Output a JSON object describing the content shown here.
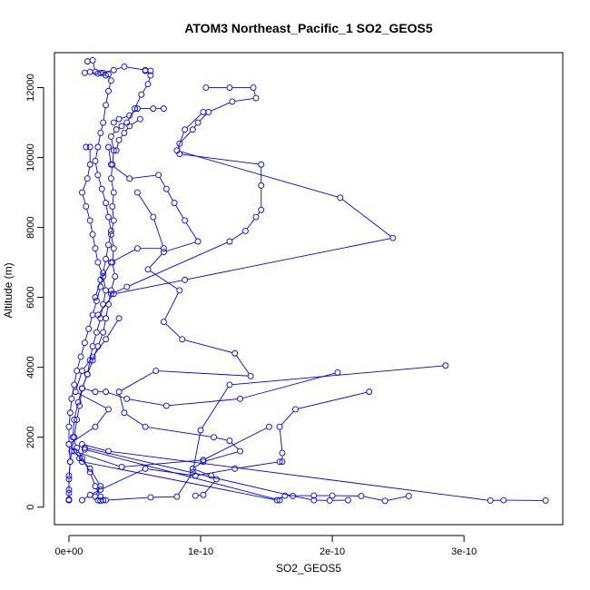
{
  "chart_data": {
    "type": "line",
    "title": "ATOM3 Northeast_Pacific_1 SO2_GEOS5",
    "xlabel": "SO2_GEOS5",
    "ylabel": "Altitude (m)",
    "xlim": [
      -1.1e-11,
      3.75e-10
    ],
    "ylim": [
      -500,
      13000
    ],
    "x_ticks": [
      0,
      1e-10,
      2e-10,
      3e-10
    ],
    "x_tick_labels": [
      "0e+00",
      "1e-10",
      "2e-10",
      "3e-10"
    ],
    "y_ticks": [
      0,
      2000,
      4000,
      6000,
      8000,
      10000,
      12000
    ],
    "y_tick_labels": [
      "0",
      "2000",
      "4000",
      "6000",
      "8000",
      "10000",
      "12000"
    ],
    "grid": false,
    "legend": "none",
    "series": [
      {
        "color": "#0000ff",
        "marker": "open-circle",
        "points": [
          [
            1.4e-11,
            12750
          ],
          [
            1.8e-11,
            12780
          ],
          [
            2e-11,
            12450
          ],
          [
            2.6e-11,
            12420
          ],
          [
            3e-11,
            12380
          ],
          [
            3.2e-11,
            12200
          ],
          [
            3e-11,
            11900
          ],
          [
            2.8e-11,
            11500
          ],
          [
            2.6e-11,
            11000
          ],
          [
            2.4e-11,
            10700
          ],
          [
            2.2e-11,
            10300
          ],
          [
            2e-11,
            9900
          ],
          [
            2.2e-11,
            9500
          ],
          [
            2.5e-11,
            9100
          ],
          [
            2.8e-11,
            8700
          ],
          [
            3e-11,
            8300
          ],
          [
            3.2e-11,
            7900
          ],
          [
            3e-11,
            7500
          ],
          [
            2.8e-11,
            7100
          ],
          [
            2.6e-11,
            6700
          ],
          [
            2.4e-11,
            6300
          ],
          [
            2.1e-11,
            5900
          ],
          [
            1.8e-11,
            5500
          ],
          [
            1.5e-11,
            5100
          ],
          [
            1.2e-11,
            4700
          ],
          [
            9e-12,
            4300
          ],
          [
            6e-12,
            3900
          ],
          [
            4e-12,
            3500
          ],
          [
            2e-12,
            3100
          ],
          [
            1e-12,
            2700
          ],
          [
            0,
            2300
          ],
          [
            0,
            1800
          ],
          [
            1e-12,
            1300
          ],
          [
            0,
            800
          ],
          [
            0,
            400
          ],
          [
            0,
            220
          ],
          [
            0,
            200
          ]
        ]
      },
      {
        "color": "#0000ff",
        "marker": "open-circle",
        "points": [
          [
            2.4e-11,
            12420
          ],
          [
            3.4e-11,
            12500
          ],
          [
            4.2e-11,
            12600
          ],
          [
            5.8e-11,
            12500
          ],
          [
            6.2e-11,
            12350
          ],
          [
            6e-11,
            12100
          ],
          [
            5.5e-11,
            11800
          ],
          [
            5e-11,
            11400
          ],
          [
            4.4e-11,
            11000
          ],
          [
            4e-11,
            10900
          ],
          [
            3.6e-11,
            10800
          ],
          [
            3.2e-11,
            10600
          ],
          [
            3.4e-11,
            10200
          ],
          [
            3.3e-11,
            9800
          ],
          [
            3.2e-11,
            9400
          ],
          [
            3.4e-11,
            9000
          ],
          [
            3.3e-11,
            8600
          ],
          [
            3.4e-11,
            8200
          ],
          [
            3.2e-11,
            7800
          ],
          [
            3.4e-11,
            7400
          ],
          [
            3.3e-11,
            7000
          ],
          [
            3.5e-11,
            6600
          ],
          [
            3.2e-11,
            6200
          ],
          [
            3e-11,
            5800
          ],
          [
            2.8e-11,
            5400
          ],
          [
            2.6e-11,
            5000
          ],
          [
            2.2e-11,
            4600
          ],
          [
            1.8e-11,
            4200
          ],
          [
            1.4e-11,
            3800
          ],
          [
            1e-11,
            3400
          ],
          [
            7e-12,
            3000
          ],
          [
            4e-12,
            2500
          ],
          [
            3e-12,
            2000
          ],
          [
            6e-12,
            1700
          ],
          [
            1e-11,
            1400
          ],
          [
            1.6e-11,
            1000
          ],
          [
            2e-11,
            600
          ],
          [
            2.4e-11,
            300
          ],
          [
            2.6e-11,
            200
          ]
        ]
      },
      {
        "color": "#0000ff",
        "marker": "open-circle",
        "points": [
          [
            1.2e-11,
            12420
          ],
          [
            1.6e-11,
            12450
          ],
          [
            2.2e-11,
            12400
          ],
          [
            2.8e-11,
            12350
          ]
        ]
      },
      {
        "color": "#0000ff",
        "marker": "open-circle",
        "points": [
          [
            6.2e-11,
            12480
          ],
          [
            5.8e-11,
            12480
          ]
        ]
      },
      {
        "color": "#0000ff",
        "marker": "open-circle",
        "points": [
          [
            1.04e-10,
            12000
          ],
          [
            1.22e-10,
            12000
          ],
          [
            1.4e-10,
            12000
          ],
          [
            1.42e-10,
            11700
          ],
          [
            1.24e-10,
            11600
          ],
          [
            1.06e-10,
            11300
          ],
          [
            9.8e-11,
            11000
          ],
          [
            9.4e-11,
            10800
          ],
          [
            8.4e-11,
            10400
          ],
          [
            8.4e-11,
            10100
          ],
          [
            1.46e-10,
            9800
          ],
          [
            1.46e-10,
            9200
          ],
          [
            1.46e-10,
            8500
          ],
          [
            1.42e-10,
            8300
          ],
          [
            1.34e-10,
            7900
          ],
          [
            1.22e-10,
            7600
          ],
          [
            4.4e-11,
            6300
          ],
          [
            3.2e-11,
            6100
          ]
        ]
      },
      {
        "color": "#0000ff",
        "marker": "open-circle",
        "points": [
          [
            1.02e-10,
            11300
          ],
          [
            8.8e-11,
            10800
          ],
          [
            8.2e-11,
            10200
          ],
          [
            2.06e-10,
            8850
          ],
          [
            2.46e-10,
            7700
          ],
          [
            8.8e-11,
            6500
          ],
          [
            3.4e-11,
            6100
          ],
          [
            2.2e-11,
            5500
          ]
        ]
      },
      {
        "color": "#0000ff",
        "marker": "open-circle",
        "points": [
          [
            7.2e-11,
            11400
          ],
          [
            6.4e-11,
            11400
          ],
          [
            5.2e-11,
            11400
          ],
          [
            4.6e-11,
            11200
          ],
          [
            3.8e-11,
            11100
          ],
          [
            3.4e-11,
            11000
          ]
        ]
      },
      {
        "color": "#0000ff",
        "marker": "open-circle",
        "points": [
          [
            5.4e-11,
            11100
          ],
          [
            4.6e-11,
            10900
          ],
          [
            4.2e-11,
            10700
          ],
          [
            3.8e-11,
            10500
          ],
          [
            3.6e-11,
            10200
          ]
        ]
      },
      {
        "color": "#0000ff",
        "marker": "open-circle",
        "points": [
          [
            3e-11,
            10300
          ],
          [
            3.2e-11,
            9800
          ],
          [
            4.6e-11,
            9400
          ],
          [
            6.8e-11,
            9500
          ],
          [
            7.4e-11,
            9100
          ],
          [
            8e-11,
            8700
          ],
          [
            8.8e-11,
            8200
          ],
          [
            9.8e-11,
            7600
          ],
          [
            7.2e-11,
            7300
          ],
          [
            6e-11,
            6800
          ],
          [
            8.4e-11,
            6200
          ],
          [
            7.2e-11,
            5300
          ],
          [
            8.6e-11,
            4800
          ],
          [
            1.26e-10,
            4400
          ],
          [
            1.38e-10,
            3750
          ],
          [
            6.6e-11,
            3900
          ],
          [
            3.8e-11,
            3300
          ],
          [
            4.2e-11,
            2700
          ],
          [
            5.8e-11,
            2300
          ],
          [
            1.1e-10,
            2000
          ],
          [
            1.22e-10,
            1900
          ],
          [
            1.3e-10,
            1600
          ],
          [
            1.02e-10,
            1300
          ],
          [
            9.4e-11,
            1100
          ],
          [
            1.08e-10,
            900
          ],
          [
            1.12e-10,
            800
          ],
          [
            1.02e-10,
            350
          ],
          [
            9.6e-11,
            330
          ]
        ]
      },
      {
        "color": "#0000ff",
        "marker": "open-circle",
        "points": [
          [
            1.3e-11,
            10300
          ],
          [
            1.6e-11,
            10300
          ],
          [
            1.6e-11,
            9800
          ],
          [
            1.4e-11,
            9400
          ],
          [
            1e-11,
            9000
          ],
          [
            1.3e-11,
            8600
          ],
          [
            1.6e-11,
            8200
          ],
          [
            1.8e-11,
            7800
          ],
          [
            2e-11,
            7400
          ],
          [
            2.2e-11,
            7000
          ],
          [
            2.6e-11,
            6600
          ],
          [
            2.8e-11,
            6200
          ],
          [
            2.6e-11,
            5800
          ],
          [
            2.4e-11,
            5400
          ],
          [
            2.1e-11,
            5000
          ],
          [
            1.8e-11,
            4600
          ],
          [
            1.6e-11,
            4200
          ],
          [
            1.4e-11,
            3800
          ],
          [
            1e-11,
            3400
          ],
          [
            8e-12,
            2900
          ],
          [
            6e-12,
            2500
          ],
          [
            4e-12,
            2000
          ],
          [
            2e-12,
            1600
          ],
          [
            1e-12,
            1300
          ],
          [
            0,
            900
          ],
          [
            0,
            500
          ],
          [
            0,
            200
          ]
        ]
      },
      {
        "color": "#0000ff",
        "marker": "open-circle",
        "points": [
          [
            5.2e-11,
            9000
          ],
          [
            6.4e-11,
            8300
          ],
          [
            7.2e-11,
            7400
          ],
          [
            5.2e-11,
            7400
          ],
          [
            3.2e-11,
            7000
          ],
          [
            2.4e-11,
            6500
          ],
          [
            2e-11,
            6000
          ]
        ]
      },
      {
        "color": "#0000ff",
        "marker": "open-circle",
        "points": [
          [
            2.86e-10,
            4050
          ],
          [
            1.22e-10,
            3500
          ],
          [
            1e-10,
            2200
          ],
          [
            9.4e-11,
            1000
          ],
          [
            8.2e-11,
            300
          ],
          [
            6.2e-11,
            280
          ],
          [
            2.8e-11,
            200
          ],
          [
            2.4e-11,
            180
          ],
          [
            2.2e-11,
            200
          ]
        ]
      },
      {
        "color": "#0000ff",
        "marker": "open-circle",
        "points": [
          [
            2.04e-10,
            3850
          ],
          [
            1.3e-10,
            3100
          ],
          [
            7.4e-11,
            2900
          ],
          [
            4.4e-11,
            3100
          ],
          [
            2.8e-11,
            3300
          ],
          [
            2e-11,
            3300
          ],
          [
            1e-11,
            3400
          ]
        ]
      },
      {
        "color": "#0000ff",
        "marker": "open-circle",
        "points": [
          [
            2.28e-10,
            3300
          ],
          [
            1.72e-10,
            2800
          ],
          [
            1.6e-10,
            2300
          ],
          [
            1.62e-10,
            1550
          ],
          [
            1.62e-10,
            1300
          ],
          [
            1.6e-10,
            1300
          ],
          [
            1.26e-10,
            1100
          ],
          [
            9.6e-11,
            900
          ],
          [
            5.8e-11,
            1100
          ],
          [
            2.4e-11,
            500
          ],
          [
            1.6e-11,
            350
          ],
          [
            1e-11,
            200
          ]
        ]
      },
      {
        "color": "#0000ff",
        "marker": "open-circle",
        "points": [
          [
            1.52e-10,
            2300
          ],
          [
            1.02e-10,
            1350
          ],
          [
            4e-11,
            1150
          ],
          [
            4e-12,
            1600
          ],
          [
            1.6e-11,
            1100
          ],
          [
            2.4e-11,
            600
          ],
          [
            2e-11,
            300
          ]
        ]
      },
      {
        "color": "#0000ff",
        "marker": "open-circle",
        "points": [
          [
            3.62e-10,
            190
          ],
          [
            3.3e-10,
            200
          ],
          [
            3.2e-10,
            190
          ],
          [
            3e-11,
            1600
          ],
          [
            1e-11,
            1800
          ]
        ]
      },
      {
        "color": "#0000ff",
        "marker": "open-circle",
        "points": [
          [
            2.58e-10,
            320
          ],
          [
            2.4e-10,
            180
          ],
          [
            2.22e-10,
            320
          ],
          [
            2e-10,
            330
          ],
          [
            1.86e-10,
            330
          ],
          [
            1.64e-10,
            330
          ],
          [
            1.58e-10,
            200
          ],
          [
            1e-11,
            1300
          ]
        ]
      },
      {
        "color": "#0000ff",
        "marker": "open-circle",
        "points": [
          [
            2.12e-10,
            200
          ],
          [
            1.98e-10,
            190
          ],
          [
            1.86e-10,
            200
          ],
          [
            1.7e-10,
            320
          ],
          [
            1.2e-11,
            1700
          ]
        ]
      },
      {
        "color": "#0000ff",
        "marker": "open-circle",
        "points": [
          [
            1.6e-10,
            200
          ],
          [
            1.2e-11,
            1650
          ],
          [
            8e-12,
            1400
          ],
          [
            0,
            1800
          ],
          [
            2e-11,
            2300
          ],
          [
            3e-11,
            2800
          ],
          [
            5e-12,
            3300
          ],
          [
            1e-11,
            3900
          ],
          [
            1.8e-11,
            4300
          ],
          [
            2.8e-11,
            4800
          ],
          [
            3.8e-11,
            5400
          ]
        ]
      }
    ]
  }
}
